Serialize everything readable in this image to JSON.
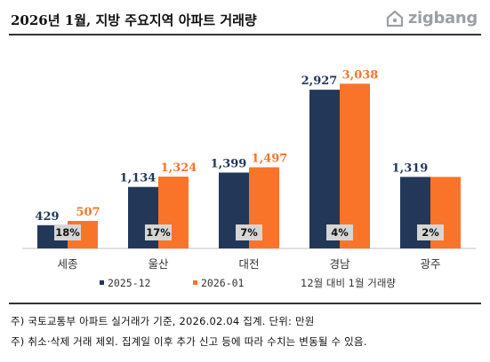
{
  "title": "2026년 1월, 지방 주요지역 아파트 거래량",
  "brand": {
    "name": "zigbang",
    "icon": "zigbang-logo-icon",
    "color": "#9aa0a6"
  },
  "colors": {
    "series_2025": "#233859",
    "series_2026": "#f97428",
    "label_2026": "#f97428",
    "label_2025": "#233859"
  },
  "chart_data": {
    "type": "bar",
    "categories": [
      "세종",
      "울산",
      "대전",
      "경남",
      "광주"
    ],
    "series": [
      {
        "name": "2025-12",
        "values": [
          429,
          1134,
          1399,
          2927,
          1319
        ],
        "labels": [
          "429",
          "1,134",
          "1,399",
          "2,927",
          "1,319"
        ]
      },
      {
        "name": "2026-01",
        "values": [
          507,
          1324,
          1497,
          3038,
          null
        ],
        "labels": [
          "507",
          "1,324",
          "1,497",
          "3,038",
          ""
        ]
      }
    ],
    "pct_labels": [
      "18%",
      "17%",
      "7%",
      "4%",
      "2%"
    ],
    "pct_labels_note": "12월 대비 1월 거래량",
    "ylim": [
      0,
      3600
    ],
    "grid": false,
    "legend": "bottom"
  },
  "notes": [
    "주) 국토교통부 아파트 실거래가 기준, 2026.02.04 집계. 단위: 만원",
    "주) 취소·삭제 거래 제외. 집계일 이후 추가 신고 등에 따라 수치는 변동될 수 있음."
  ]
}
